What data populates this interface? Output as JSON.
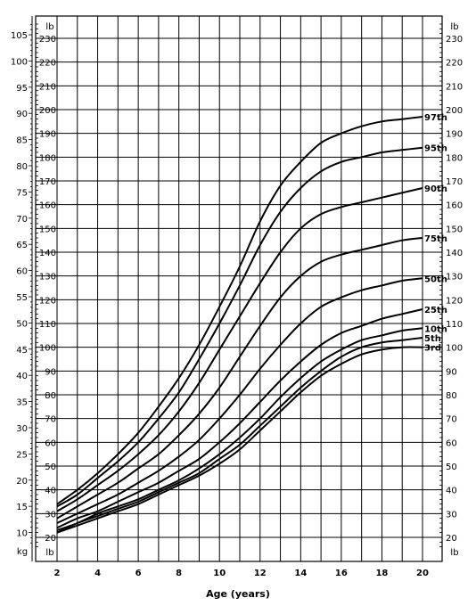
{
  "chart_data": {
    "type": "line",
    "xlabel": "Age (years)",
    "x_ticks": [
      2,
      4,
      6,
      8,
      10,
      12,
      14,
      16,
      18,
      20
    ],
    "xlim": [
      2,
      20.5
    ],
    "ylim_lb": [
      16,
      237
    ],
    "lb_ticks": [
      20,
      30,
      40,
      50,
      60,
      70,
      80,
      90,
      100,
      110,
      120,
      130,
      140,
      150,
      160,
      170,
      180,
      190,
      200,
      210,
      220,
      230
    ],
    "kg_ticks": [
      10,
      15,
      20,
      25,
      30,
      35,
      40,
      45,
      50,
      55,
      60,
      65,
      70,
      75,
      80,
      85,
      90,
      95,
      100,
      105
    ],
    "left_units": {
      "kg": "kg",
      "lb": "lb"
    },
    "right_units": {
      "lb": "lb"
    },
    "x": [
      2,
      3,
      4,
      5,
      6,
      7,
      8,
      9,
      10,
      11,
      12,
      13,
      14,
      15,
      16,
      17,
      18,
      19,
      20
    ],
    "series": [
      {
        "name": "97th",
        "values": [
          34,
          40,
          47,
          55,
          64,
          75,
          87,
          101,
          117,
          134,
          153,
          168,
          178,
          186,
          190,
          193,
          195,
          196,
          197
        ]
      },
      {
        "name": "95th",
        "values": [
          33,
          38,
          45,
          52,
          60,
          70,
          81,
          95,
          110,
          126,
          143,
          157,
          167,
          174,
          178,
          180,
          182,
          183,
          184
        ]
      },
      {
        "name": "90th",
        "values": [
          31,
          36,
          42,
          48,
          55,
          63,
          73,
          85,
          99,
          113,
          127,
          140,
          150,
          156,
          159,
          161,
          163,
          165,
          167
        ]
      },
      {
        "name": "75th",
        "values": [
          28,
          33,
          38,
          43,
          49,
          55,
          63,
          72,
          83,
          96,
          109,
          121,
          130,
          136,
          139,
          141,
          143,
          145,
          146
        ]
      },
      {
        "name": "50th",
        "values": [
          26,
          30,
          34,
          38,
          43,
          48,
          54,
          61,
          70,
          80,
          91,
          101,
          110,
          117,
          121,
          124,
          126,
          128,
          129
        ]
      },
      {
        "name": "25th",
        "values": [
          24,
          28,
          31,
          35,
          39,
          43,
          48,
          53,
          60,
          68,
          77,
          86,
          94,
          101,
          106,
          109,
          112,
          114,
          116
        ]
      },
      {
        "name": "10th",
        "values": [
          23,
          26,
          30,
          33,
          36,
          40,
          44,
          49,
          55,
          62,
          70,
          79,
          87,
          94,
          99,
          103,
          105,
          107,
          108
        ]
      },
      {
        "name": "5th",
        "values": [
          22,
          26,
          29,
          32,
          35,
          39,
          43,
          47,
          53,
          59,
          67,
          75,
          83,
          90,
          96,
          100,
          102,
          103,
          104
        ]
      },
      {
        "name": "3rd",
        "values": [
          22,
          25,
          28,
          31,
          34,
          38,
          42,
          46,
          51,
          57,
          65,
          73,
          81,
          88,
          93,
          97,
          99,
          100,
          100
        ]
      }
    ],
    "grid": true,
    "legend": "labels at line ends (right)"
  }
}
